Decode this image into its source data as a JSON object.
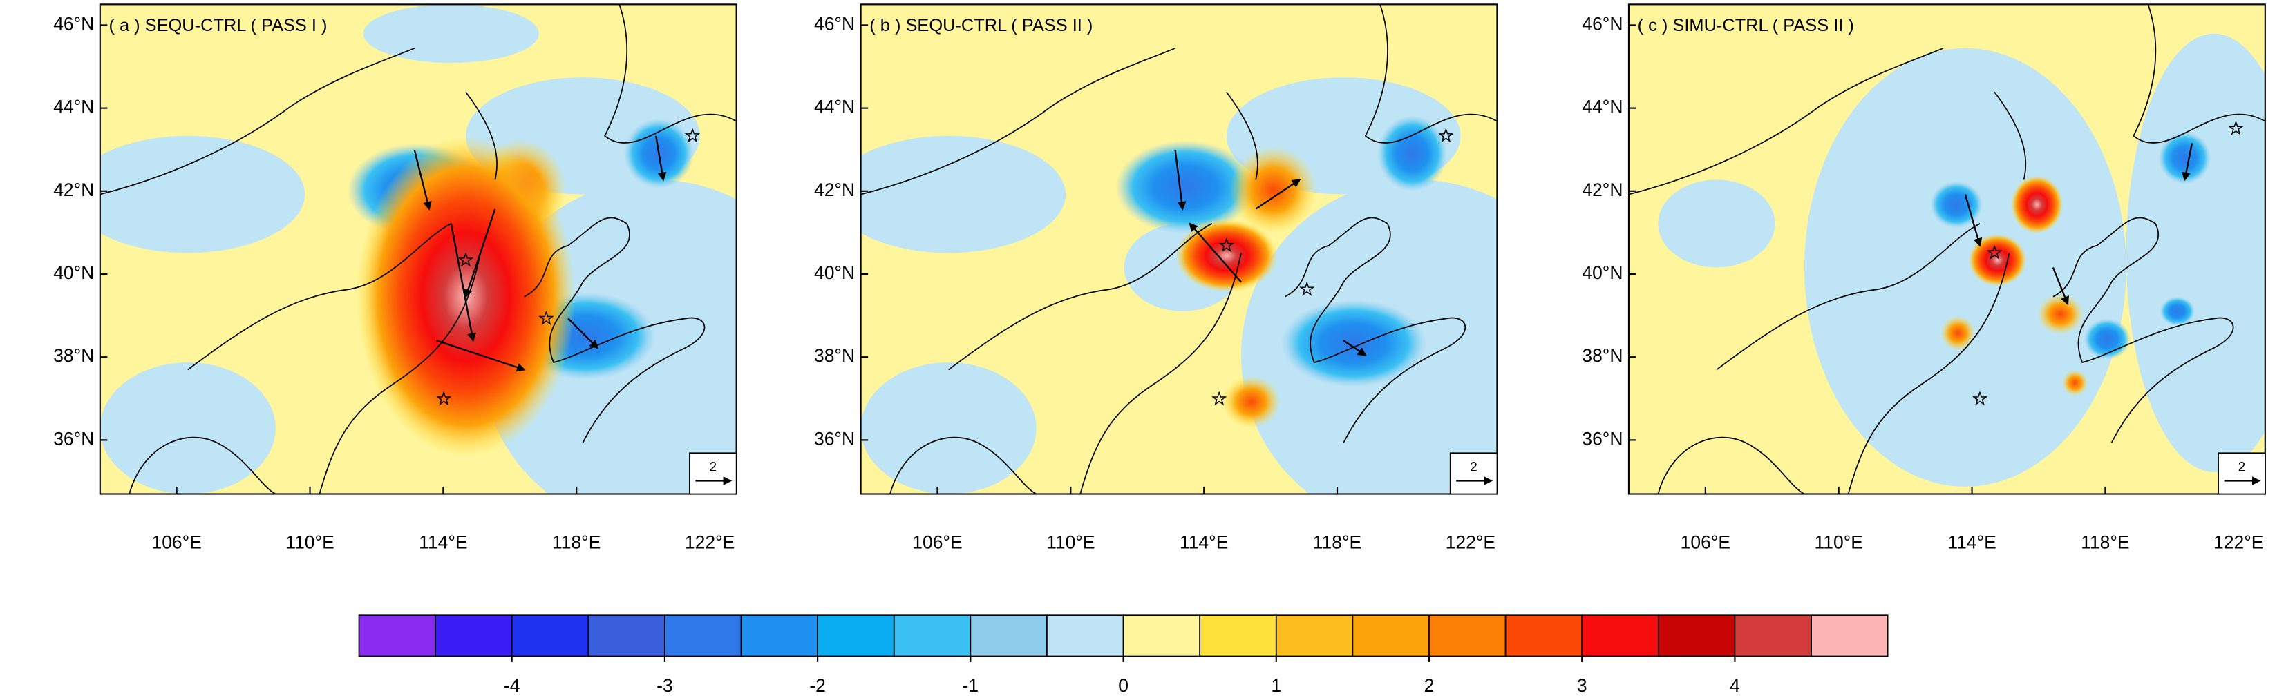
{
  "panels": [
    {
      "title": "( a ) SEQU-CTRL ( PASS I )",
      "xlim": [
        103.7,
        122.8
      ],
      "ylim": [
        34.7,
        46.5
      ],
      "xticks": [
        {
          "value": 106,
          "label": "106°E"
        },
        {
          "value": 110,
          "label": "110°E"
        },
        {
          "value": 114,
          "label": "114°E"
        },
        {
          "value": 118,
          "label": "118°E"
        },
        {
          "value": 122,
          "label": "122°E"
        }
      ],
      "yticks": [
        {
          "value": 36,
          "label": "36°N"
        },
        {
          "value": 38,
          "label": "38°N"
        },
        {
          "value": 40,
          "label": "40°N"
        },
        {
          "value": 42,
          "label": "42°N"
        },
        {
          "value": 44,
          "label": "44°N"
        },
        {
          "value": 46,
          "label": "46°N"
        }
      ],
      "ref_vector_label": "2"
    },
    {
      "title": "( b ) SEQU-CTRL ( PASS II )",
      "xlim": [
        103.7,
        122.8
      ],
      "ylim": [
        34.7,
        46.5
      ],
      "xticks": [
        {
          "value": 106,
          "label": "106°E"
        },
        {
          "value": 110,
          "label": "110°E"
        },
        {
          "value": 114,
          "label": "114°E"
        },
        {
          "value": 118,
          "label": "118°E"
        },
        {
          "value": 122,
          "label": "122°E"
        }
      ],
      "yticks": [
        {
          "value": 36,
          "label": "36°N"
        },
        {
          "value": 38,
          "label": "38°N"
        },
        {
          "value": 40,
          "label": "40°N"
        },
        {
          "value": 42,
          "label": "42°N"
        },
        {
          "value": 44,
          "label": "44°N"
        },
        {
          "value": 46,
          "label": "46°N"
        }
      ],
      "ref_vector_label": "2"
    },
    {
      "title": "( c ) SIMU-CTRL ( PASS II )",
      "xlim": [
        103.7,
        122.8
      ],
      "ylim": [
        34.7,
        46.5
      ],
      "xticks": [
        {
          "value": 106,
          "label": "106°E"
        },
        {
          "value": 110,
          "label": "110°E"
        },
        {
          "value": 114,
          "label": "114°E"
        },
        {
          "value": 118,
          "label": "118°E"
        },
        {
          "value": 122,
          "label": "122°E"
        }
      ],
      "yticks": [
        {
          "value": 36,
          "label": "36°N"
        },
        {
          "value": 38,
          "label": "38°N"
        },
        {
          "value": 40,
          "label": "40°N"
        },
        {
          "value": 42,
          "label": "42°N"
        },
        {
          "value": 44,
          "label": "44°N"
        },
        {
          "value": 46,
          "label": "46°N"
        }
      ],
      "ref_vector_label": "2"
    }
  ],
  "colorbar": {
    "lim": [
      -5,
      5
    ],
    "ticks": [
      -4,
      -3,
      -2,
      -1,
      0,
      1,
      2,
      3,
      4
    ],
    "colors": [
      "#8a2cf0",
      "#3a1cf5",
      "#1f32f0",
      "#3a5fdc",
      "#2f78ea",
      "#1f90f0",
      "#0aacf2",
      "#3ac0f3",
      "#8ecbea",
      "#bfe4f6",
      "#fff59d",
      "#ffe13a",
      "#fdbd1e",
      "#fca20a",
      "#fc7f06",
      "#fb4a08",
      "#f70d0d",
      "#c80404",
      "#d43c3c",
      "#fcb4b4"
    ]
  }
}
